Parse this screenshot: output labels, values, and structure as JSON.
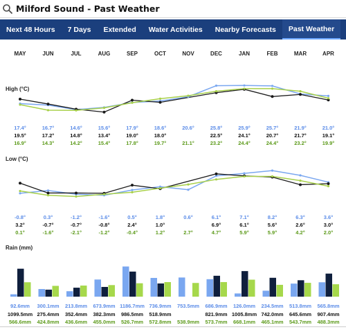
{
  "search": {
    "title": "Milford Sound - Past Weather",
    "icon": "search-icon"
  },
  "nav": {
    "tabs": [
      {
        "label": "Next 48 Hours",
        "active": false
      },
      {
        "label": "7 Days",
        "active": false
      },
      {
        "label": "Extended",
        "active": false
      },
      {
        "label": "Water Activities",
        "active": false
      },
      {
        "label": "Nearby Forecasts",
        "active": false
      },
      {
        "label": "Past Weather",
        "active": true
      }
    ]
  },
  "colors": {
    "blue": "#7aa7f0",
    "black": "#1a1a1a",
    "green": "#a8d04a",
    "navy": "#1b3f7d",
    "bar_blue": "#7aa7f0",
    "bar_navy": "#0f1f3d",
    "bar_green": "#a6d84b"
  },
  "months": [
    "MAY",
    "JUN",
    "JUL",
    "AUG",
    "SEP",
    "OCT",
    "NOV",
    "DEC",
    "JAN",
    "FEB",
    "MAR",
    "APR"
  ],
  "high": {
    "label": "High (°C)",
    "blue": [
      "17.4°",
      "16.7°",
      "14.6°",
      "15.6°",
      "17.9°",
      "18.6°",
      "20.6°",
      "25.8°",
      "25.9°",
      "25.7°",
      "21.9°",
      "21.0°"
    ],
    "black": [
      "19.5°",
      "17.2°",
      "14.8°",
      "13.4°",
      "19.0°",
      "18.0°",
      "",
      "22.5°",
      "24.1°",
      "20.7°",
      "21.7°",
      "19.1°"
    ],
    "green": [
      "16.9°",
      "14.3°",
      "14.2°",
      "15.4°",
      "17.8°",
      "19.7°",
      "21.1°",
      "23.2°",
      "24.4°",
      "24.4°",
      "23.2°",
      "19.9°"
    ]
  },
  "low": {
    "label": "Low (°C)",
    "blue": [
      "-0.8°",
      "0.3°",
      "-1.2°",
      "-1.6°",
      "0.5°",
      "1.8°",
      "0.6°",
      "6.1°",
      "7.1°",
      "8.2°",
      "6.3°",
      "3.6°"
    ],
    "black": [
      "3.2°",
      "-0.7°",
      "-0.7°",
      "-0.8°",
      "2.4°",
      "1.0°",
      "",
      "6.9°",
      "6.1°",
      "5.6°",
      "2.6°",
      "3.0°"
    ],
    "green": [
      "0.1°",
      "-1.6°",
      "-2.1°",
      "-1.2°",
      "-0.4°",
      "1.2°",
      "2.7°",
      "4.7°",
      "5.9°",
      "5.9°",
      "4.2°",
      "2.0°"
    ]
  },
  "rain": {
    "label": "Rain (mm)",
    "blue": [
      "92.6mm",
      "300.1mm",
      "213.8mm",
      "673.9mm",
      "1186.7mm",
      "736.9mm",
      "753.5mm",
      "686.9mm",
      "126.0mm",
      "234.5mm",
      "513.8mm",
      "565.8mm"
    ],
    "black": [
      "1099.5mm",
      "275.4mm",
      "352.4mm",
      "382.3mm",
      "986.5mm",
      "518.9mm",
      "",
      "821.9mm",
      "1005.8mm",
      "742.0mm",
      "645.6mm",
      "907.4mm"
    ],
    "green": [
      "566.6mm",
      "424.8mm",
      "436.6mm",
      "455.0mm",
      "526.7mm",
      "572.8mm",
      "538.9mm",
      "573.7mm",
      "668.1mm",
      "465.1mm",
      "543.7mm",
      "488.3mm"
    ]
  },
  "chart_data": [
    {
      "type": "line",
      "title": "High (°C)",
      "categories": [
        "MAY",
        "JUN",
        "JUL",
        "AUG",
        "SEP",
        "OCT",
        "NOV",
        "DEC",
        "JAN",
        "FEB",
        "MAR",
        "APR"
      ],
      "series": [
        {
          "color": "#7aa7f0",
          "values": [
            17.4,
            16.7,
            14.6,
            15.6,
            17.9,
            18.6,
            20.6,
            25.8,
            25.9,
            25.7,
            21.9,
            21.0
          ]
        },
        {
          "color": "#1a1a1a",
          "values": [
            19.5,
            17.2,
            14.8,
            13.4,
            19.0,
            18.0,
            null,
            22.5,
            24.1,
            20.7,
            21.7,
            19.1
          ]
        },
        {
          "color": "#a8d04a",
          "values": [
            16.9,
            14.3,
            14.2,
            15.4,
            17.8,
            19.7,
            21.1,
            23.2,
            24.4,
            24.4,
            23.2,
            19.9
          ]
        }
      ]
    },
    {
      "type": "line",
      "title": "Low (°C)",
      "categories": [
        "MAY",
        "JUN",
        "JUL",
        "AUG",
        "SEP",
        "OCT",
        "NOV",
        "DEC",
        "JAN",
        "FEB",
        "MAR",
        "APR"
      ],
      "series": [
        {
          "color": "#7aa7f0",
          "values": [
            -0.8,
            0.3,
            -1.2,
            -1.6,
            0.5,
            1.8,
            0.6,
            6.1,
            7.1,
            8.2,
            6.3,
            3.6
          ]
        },
        {
          "color": "#1a1a1a",
          "values": [
            3.2,
            -0.7,
            -0.7,
            -0.8,
            2.4,
            1.0,
            null,
            6.9,
            6.1,
            5.6,
            2.6,
            3.0
          ]
        },
        {
          "color": "#a8d04a",
          "values": [
            0.1,
            -1.6,
            -2.1,
            -1.2,
            -0.4,
            1.2,
            2.7,
            4.7,
            5.9,
            5.9,
            4.2,
            2.0
          ]
        }
      ]
    },
    {
      "type": "bar",
      "title": "Rain (mm)",
      "categories": [
        "MAY",
        "JUN",
        "JUL",
        "AUG",
        "SEP",
        "OCT",
        "NOV",
        "DEC",
        "JAN",
        "FEB",
        "MAR",
        "APR"
      ],
      "series": [
        {
          "color": "#7aa7f0",
          "values": [
            92.6,
            300.1,
            213.8,
            673.9,
            1186.7,
            736.9,
            753.5,
            686.9,
            126.0,
            234.5,
            513.8,
            565.8
          ]
        },
        {
          "color": "#0f1f3d",
          "values": [
            1099.5,
            275.4,
            352.4,
            382.3,
            986.5,
            518.9,
            null,
            821.9,
            1005.8,
            742.0,
            645.6,
            907.4
          ]
        },
        {
          "color": "#a6d84b",
          "values": [
            566.6,
            424.8,
            436.6,
            455.0,
            526.7,
            572.8,
            538.9,
            573.7,
            668.1,
            465.1,
            543.7,
            488.3
          ]
        }
      ]
    }
  ]
}
